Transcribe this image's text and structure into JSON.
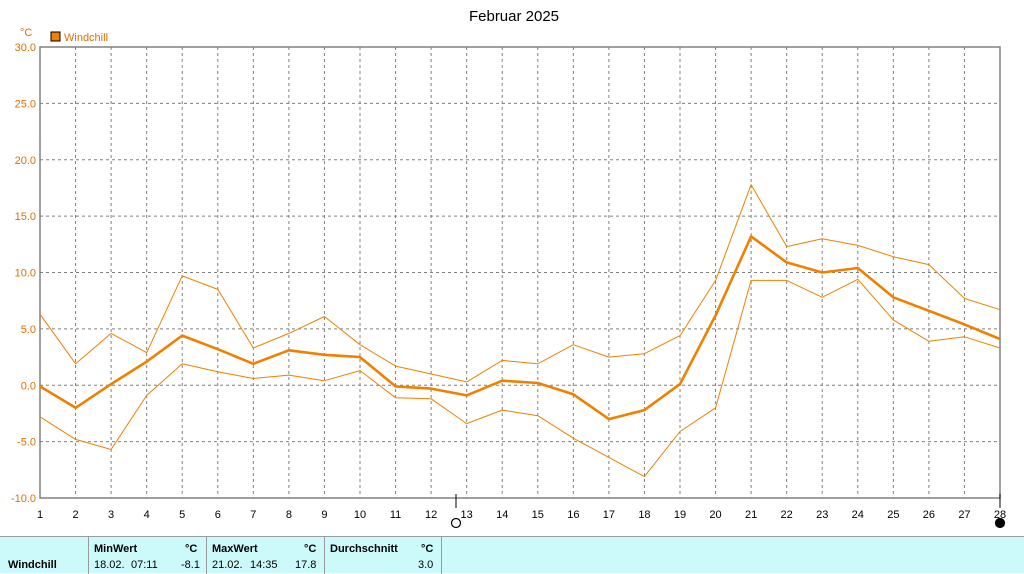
{
  "chart_data": {
    "type": "line",
    "title": "Februar 2025",
    "ylabel": "°C",
    "xlabel": "",
    "ylim": [
      -10,
      30
    ],
    "yticks": [
      "30.0",
      "25.0",
      "20.0",
      "15.0",
      "10.0",
      "5.0",
      "0.0",
      "-5.0",
      "-10.0"
    ],
    "ytick_values": [
      30,
      25,
      20,
      15,
      10,
      5,
      0,
      -5,
      -10
    ],
    "categories": [
      "1",
      "2",
      "3",
      "4",
      "5",
      "6",
      "7",
      "8",
      "9",
      "10",
      "11",
      "12",
      "13",
      "14",
      "15",
      "16",
      "17",
      "18",
      "19",
      "20",
      "21",
      "22",
      "23",
      "24",
      "25",
      "26",
      "27",
      "28"
    ],
    "x": [
      1,
      2,
      3,
      4,
      5,
      6,
      7,
      8,
      9,
      10,
      11,
      12,
      13,
      14,
      15,
      16,
      17,
      18,
      19,
      20,
      21,
      22,
      23,
      24,
      25,
      26,
      27,
      28
    ],
    "grid": true,
    "legend": {
      "position": "top-left",
      "label": "Windchill"
    },
    "series": [
      {
        "name": "Windchill",
        "role": "mean",
        "color": "#f08000",
        "values": [
          -0.1,
          -2.0,
          0.1,
          2.1,
          4.4,
          3.2,
          1.9,
          3.1,
          2.7,
          2.5,
          -0.1,
          -0.3,
          -0.9,
          0.4,
          0.2,
          -0.8,
          -3.0,
          -2.2,
          0.1,
          6.2,
          13.2,
          10.9,
          10.0,
          10.4,
          7.8,
          6.6,
          5.4,
          4.1
        ]
      },
      {
        "role": "max",
        "color": "#f08000",
        "values": [
          6.3,
          1.9,
          4.6,
          2.9,
          9.7,
          8.5,
          3.3,
          4.6,
          6.1,
          3.6,
          1.7,
          1.0,
          0.3,
          2.2,
          1.9,
          3.6,
          2.5,
          2.8,
          4.4,
          9.3,
          17.8,
          12.3,
          13.0,
          12.4,
          11.4,
          10.7,
          7.7,
          6.7
        ]
      },
      {
        "role": "min",
        "color": "#f08000",
        "values": [
          -2.8,
          -4.8,
          -5.7,
          -0.9,
          1.9,
          1.2,
          0.6,
          0.9,
          0.4,
          1.3,
          -1.1,
          -1.2,
          -3.4,
          -2.2,
          -2.7,
          -4.7,
          -6.4,
          -8.1,
          -4.1,
          -2.0,
          9.3,
          9.3,
          7.8,
          9.4,
          5.8,
          3.9,
          4.3,
          3.3
        ]
      }
    ],
    "markers": [
      {
        "x": 12.7,
        "symbol": "open-circle",
        "name": "new-moon-marker"
      },
      {
        "x": 28,
        "symbol": "filled-circle",
        "name": "full-moon-marker"
      }
    ],
    "colors": {
      "line": "#f08000",
      "frame": "#808080",
      "grid": "#808080",
      "axis_text": "#000000",
      "legend_text": "#e07000"
    }
  },
  "stats": {
    "series_label": "Windchill",
    "min_header": "MinWert",
    "min_unit": "°C",
    "min_date": "18.02.",
    "min_time": "07:11",
    "min_value": "-8.1",
    "max_header": "MaxWert",
    "max_unit": "°C",
    "max_date": "21.02.",
    "max_time": "14:35",
    "max_value": "17.8",
    "avg_header": "Durchschnitt",
    "avg_unit": "°C",
    "avg_value": "3.0",
    "background": "#ccfafa"
  }
}
